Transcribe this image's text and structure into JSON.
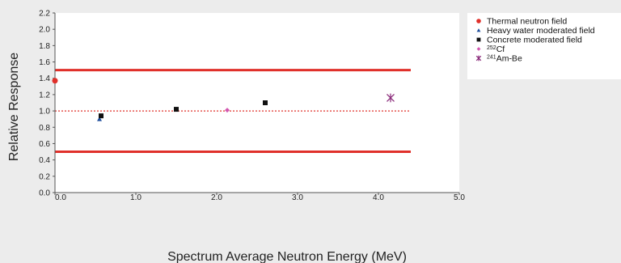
{
  "chart_data": {
    "type": "scatter",
    "xlabel": "Spectrum Average Neutron Energy  (MeV)",
    "ylabel": "Relative Response",
    "xlim": [
      0,
      5
    ],
    "ylim": [
      0,
      2.2
    ],
    "x_ticks": [
      "0.0",
      "1.0",
      "2.0",
      "3.0",
      "4.0",
      "5.0"
    ],
    "y_ticks": [
      "0.0",
      "0.2",
      "0.4",
      "0.6",
      "0.8",
      "1.0",
      "1.2",
      "1.4",
      "1.6",
      "1.8",
      "2.0",
      "2.2"
    ],
    "grid": false,
    "legend_position": "right",
    "series": [
      {
        "name": "Thermal neutron field",
        "marker": "circle",
        "color": "#e0302a",
        "points": [
          [
            0.0,
            1.37
          ]
        ]
      },
      {
        "name": "Heavy water moderated field",
        "marker": "triangle",
        "color": "#1f4e9c",
        "points": [
          [
            0.55,
            0.9
          ]
        ]
      },
      {
        "name": "Concrete moderated field",
        "marker": "square",
        "color": "#111111",
        "points": [
          [
            0.57,
            0.94
          ],
          [
            1.5,
            1.02
          ],
          [
            2.6,
            1.1
          ]
        ]
      },
      {
        "name": "Cf",
        "sup": "252",
        "marker": "diamond",
        "color": "#d257b0",
        "points": [
          [
            2.13,
            1.01
          ]
        ]
      },
      {
        "name": "Am-Be",
        "sup": "241",
        "marker": "star",
        "color": "#8a2a7a",
        "points": [
          [
            4.15,
            1.16
          ]
        ]
      }
    ],
    "reference_lines": [
      {
        "y": 1.5,
        "x_range": [
          0,
          4.4
        ],
        "style": "solid",
        "color": "#e0302a"
      },
      {
        "y": 1.0,
        "x_range": [
          0,
          4.4
        ],
        "style": "dotted",
        "color": "#e0302a"
      },
      {
        "y": 0.5,
        "x_range": [
          0,
          4.4
        ],
        "style": "solid",
        "color": "#e0302a"
      }
    ]
  }
}
